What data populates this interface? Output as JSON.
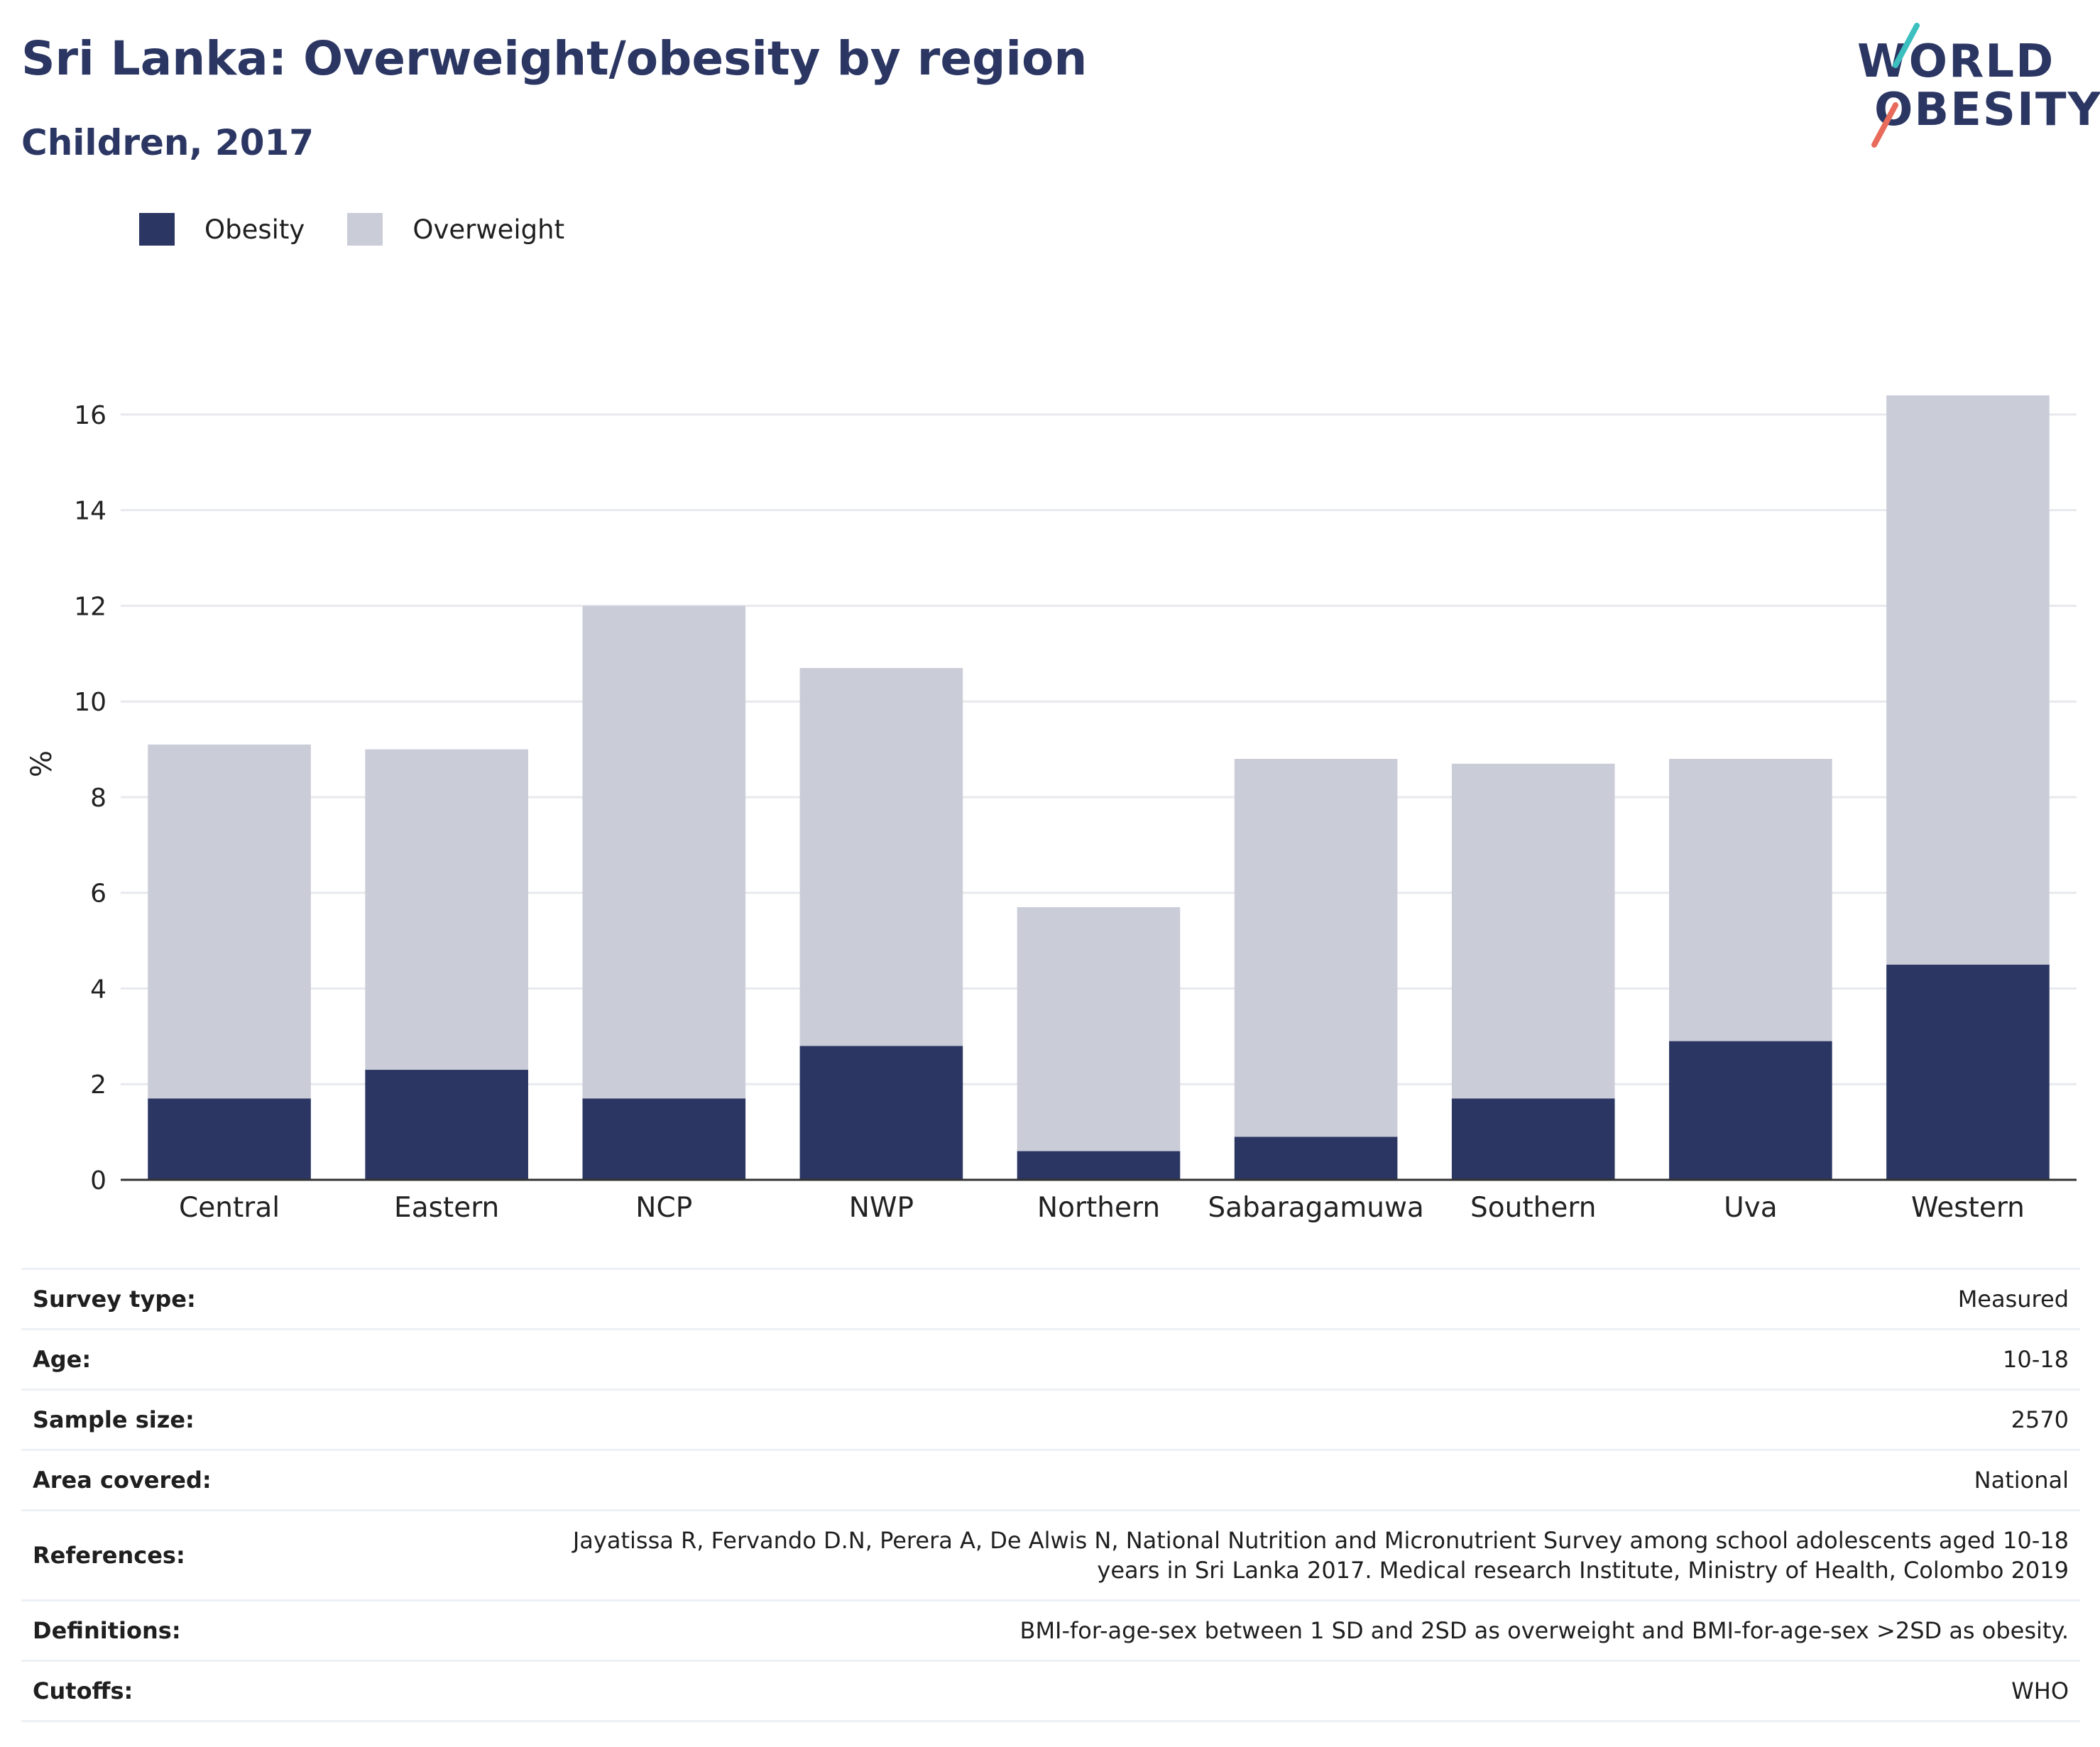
{
  "header": {
    "title": "Sri Lanka: Overweight/obesity by region",
    "subtitle": "Children, 2017"
  },
  "logo": {
    "line1": "WORLD",
    "line2": "OBESITY"
  },
  "legend": {
    "obesity": "Obesity",
    "overweight": "Overweight"
  },
  "colors": {
    "obesity": "#2b3663",
    "overweight": "#caccd8",
    "grid": "#e8e9ee",
    "axis": "#333333"
  },
  "chart_data": {
    "type": "bar",
    "stacked": true,
    "categories": [
      "Central",
      "Eastern",
      "NCP",
      "NWP",
      "Northern",
      "Sabaragamuwa",
      "Southern",
      "Uva",
      "Western"
    ],
    "series": [
      {
        "name": "Obesity",
        "values": [
          1.7,
          2.3,
          1.7,
          2.8,
          0.6,
          0.9,
          1.7,
          2.9,
          4.5
        ]
      },
      {
        "name": "Overweight",
        "values": [
          7.4,
          6.7,
          10.3,
          7.9,
          5.1,
          7.9,
          7.0,
          5.9,
          11.9
        ]
      }
    ],
    "title": "Sri Lanka: Overweight/obesity by region",
    "subtitle": "Children, 2017",
    "xlabel": "",
    "ylabel": "%",
    "ylim": [
      0,
      16.8
    ],
    "yticks": [
      0,
      2,
      4,
      6,
      8,
      10,
      12,
      14,
      16
    ],
    "grid": true,
    "legend_position": "top-left"
  },
  "metadata": [
    {
      "key": "Survey type:",
      "value": "Measured"
    },
    {
      "key": "Age:",
      "value": "10-18"
    },
    {
      "key": "Sample size:",
      "value": "2570"
    },
    {
      "key": "Area covered:",
      "value": "National"
    },
    {
      "key": "References:",
      "value": "Jayatissa R, Fervando D.N, Perera A, De Alwis N, National Nutrition and Micronutrient Survey among school adolescents aged 10-18 years in Sri Lanka 2017. Medical research Institute, Ministry of Health, Colombo 2019"
    },
    {
      "key": "Definitions:",
      "value": "BMI-for-age-sex between 1 SD and 2SD as overweight and BMI-for-age-sex >2SD as obesity."
    },
    {
      "key": "Cutoffs:",
      "value": "WHO"
    }
  ]
}
